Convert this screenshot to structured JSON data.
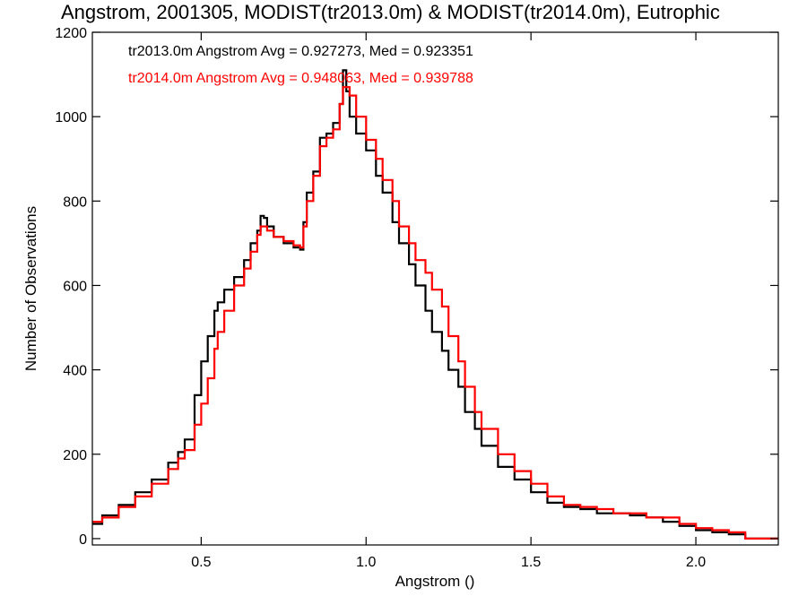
{
  "chart_data": {
    "type": "line",
    "title": "Angstrom, 2001305, MODIST(tr2013.0m) & MODIST(tr2014.0m), Eutrophic",
    "xlabel": "Angstrom ()",
    "ylabel": "Number of Observations",
    "xlim": [
      0.17,
      2.25
    ],
    "ylim": [
      -15,
      1200
    ],
    "x_ticks": [
      0.5,
      1.0,
      1.5,
      2.0
    ],
    "x_tick_labels": [
      "0.5",
      "1.0",
      "1.5",
      "2.0"
    ],
    "y_ticks": [
      0,
      200,
      400,
      600,
      800,
      1000,
      1200
    ],
    "y_tick_labels": [
      "0",
      "200",
      "400",
      "600",
      "800",
      "1000",
      "1200"
    ],
    "grid": false,
    "legend": {
      "placement": "top-left",
      "entries": [
        {
          "text": "tr2013.0m Angstrom Avg = 0.927273, Med = 0.923351",
          "color": "#000000"
        },
        {
          "text": "tr2014.0m Angstrom Avg = 0.948063, Med = 0.939788",
          "color": "#ff0000"
        }
      ]
    },
    "series": [
      {
        "color": "#000000",
        "x": [
          0.17,
          0.2,
          0.25,
          0.3,
          0.35,
          0.4,
          0.43,
          0.45,
          0.48,
          0.5,
          0.52,
          0.54,
          0.55,
          0.57,
          0.6,
          0.63,
          0.65,
          0.67,
          0.68,
          0.69,
          0.7,
          0.72,
          0.75,
          0.78,
          0.8,
          0.81,
          0.82,
          0.84,
          0.86,
          0.88,
          0.9,
          0.92,
          0.93,
          0.94,
          0.95,
          0.97,
          1.0,
          1.03,
          1.05,
          1.08,
          1.1,
          1.13,
          1.15,
          1.18,
          1.2,
          1.23,
          1.25,
          1.28,
          1.3,
          1.33,
          1.35,
          1.4,
          1.45,
          1.5,
          1.55,
          1.6,
          1.65,
          1.7,
          1.75,
          1.8,
          1.85,
          1.9,
          1.95,
          2.0,
          2.05,
          2.1,
          2.15,
          2.25
        ],
        "y": [
          35,
          55,
          80,
          110,
          140,
          180,
          205,
          235,
          340,
          420,
          480,
          540,
          560,
          590,
          620,
          660,
          700,
          730,
          765,
          760,
          740,
          715,
          700,
          690,
          685,
          750,
          820,
          870,
          950,
          960,
          985,
          1030,
          1110,
          1060,
          1000,
          960,
          920,
          860,
          820,
          750,
          700,
          650,
          600,
          540,
          490,
          445,
          400,
          360,
          300,
          260,
          220,
          170,
          140,
          110,
          85,
          75,
          70,
          60,
          60,
          55,
          50,
          40,
          30,
          20,
          15,
          10,
          0,
          0
        ]
      },
      {
        "color": "#ff0000",
        "x": [
          0.17,
          0.2,
          0.25,
          0.3,
          0.35,
          0.4,
          0.43,
          0.45,
          0.48,
          0.5,
          0.52,
          0.54,
          0.55,
          0.57,
          0.6,
          0.63,
          0.65,
          0.67,
          0.68,
          0.69,
          0.7,
          0.72,
          0.75,
          0.78,
          0.8,
          0.81,
          0.82,
          0.84,
          0.86,
          0.88,
          0.9,
          0.92,
          0.93,
          0.94,
          0.95,
          0.97,
          1.0,
          1.03,
          1.05,
          1.08,
          1.1,
          1.13,
          1.15,
          1.18,
          1.2,
          1.23,
          1.25,
          1.28,
          1.3,
          1.33,
          1.35,
          1.4,
          1.45,
          1.5,
          1.55,
          1.6,
          1.65,
          1.7,
          1.75,
          1.8,
          1.85,
          1.9,
          1.95,
          2.0,
          2.05,
          2.1,
          2.15,
          2.25
        ],
        "y": [
          40,
          50,
          75,
          100,
          130,
          165,
          190,
          210,
          270,
          320,
          380,
          450,
          490,
          540,
          600,
          640,
          680,
          720,
          740,
          740,
          730,
          715,
          705,
          695,
          690,
          740,
          800,
          860,
          930,
          950,
          970,
          1030,
          1070,
          1070,
          1050,
          1000,
          945,
          900,
          850,
          800,
          740,
          700,
          660,
          630,
          590,
          550,
          480,
          420,
          360,
          300,
          260,
          200,
          160,
          130,
          100,
          80,
          75,
          70,
          60,
          60,
          50,
          50,
          35,
          25,
          20,
          15,
          0,
          0
        ]
      }
    ]
  }
}
